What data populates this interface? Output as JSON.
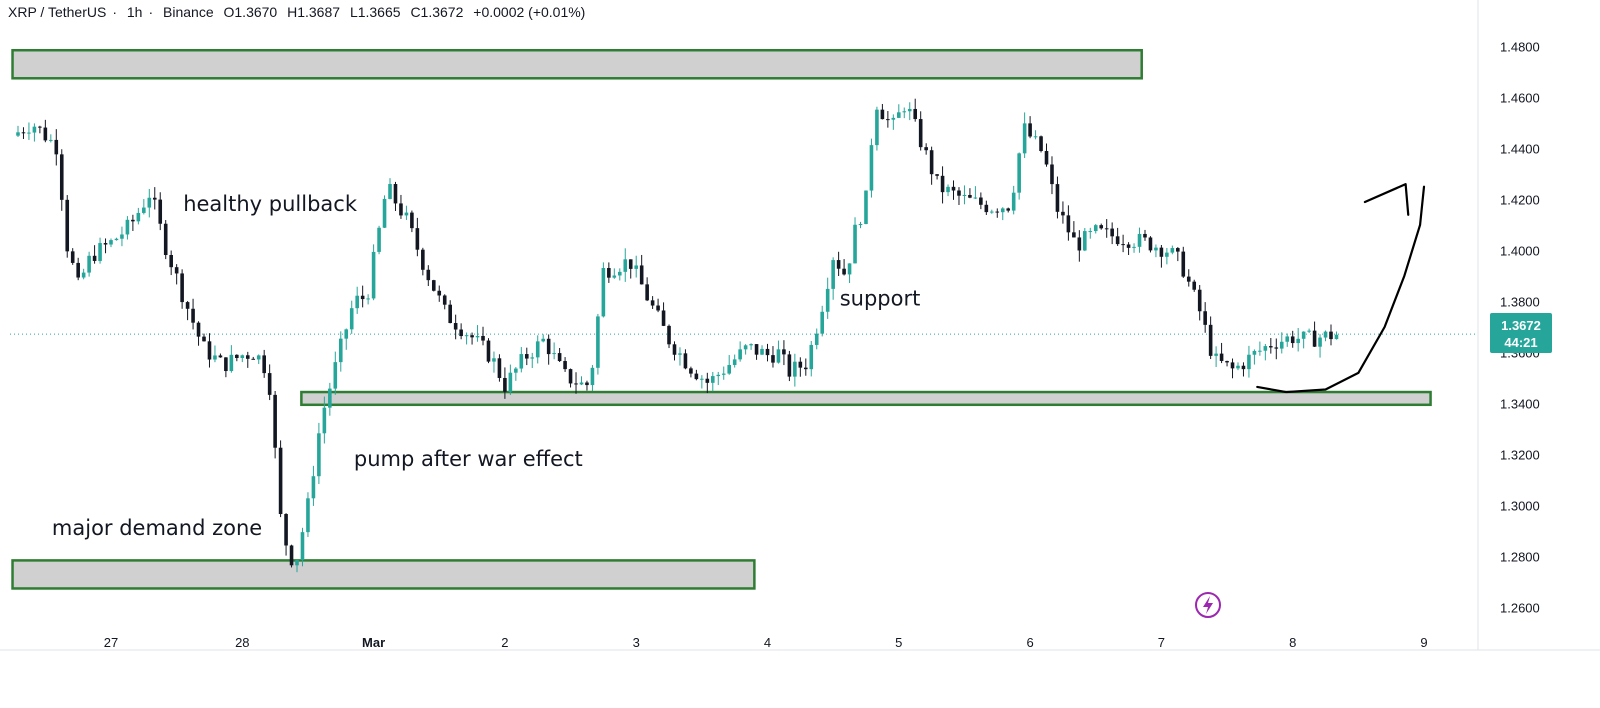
{
  "header": {
    "symbol": "XRP / TetherUS",
    "interval": "1h",
    "exchange": "Binance",
    "open": "O1.3670",
    "high": "H1.3687",
    "low": "L1.3665",
    "close": "C1.3672",
    "change": "+0.0002 (+0.01%)"
  },
  "price_badge": {
    "price": "1.3672",
    "countdown": "44:21"
  },
  "colors": {
    "up": "#26a69a",
    "down": "#131722",
    "zone_fill": "#d0d0d0",
    "zone_border": "#2e7d32",
    "accent": "#9c27b0"
  },
  "chart_data": {
    "type": "candlestick",
    "x_ticks": [
      {
        "label": "27",
        "bold": false
      },
      {
        "label": "28",
        "bold": false
      },
      {
        "label": "Mar",
        "bold": true
      },
      {
        "label": "2",
        "bold": false
      },
      {
        "label": "3",
        "bold": false
      },
      {
        "label": "4",
        "bold": false
      },
      {
        "label": "5",
        "bold": false
      },
      {
        "label": "6",
        "bold": false
      },
      {
        "label": "7",
        "bold": false
      },
      {
        "label": "8",
        "bold": false
      },
      {
        "label": "9",
        "bold": false
      }
    ],
    "y_ticks": [
      "1.4800",
      "1.4600",
      "1.4400",
      "1.4200",
      "1.4000",
      "1.3800",
      "1.3600",
      "1.3400",
      "1.3200",
      "1.3000",
      "1.2800",
      "1.2600"
    ],
    "ylim": [
      1.252,
      1.488
    ],
    "xlim_days": [
      -0.75,
      10.2
    ],
    "last_price": 1.3672,
    "anchors": [
      [
        -0.75,
        1.445
      ],
      [
        -0.6,
        1.45
      ],
      [
        -0.4,
        1.44
      ],
      [
        -0.35,
        1.405
      ],
      [
        -0.25,
        1.386
      ],
      [
        -0.15,
        1.398
      ],
      [
        0.0,
        1.403
      ],
      [
        0.15,
        1.41
      ],
      [
        0.3,
        1.423
      ],
      [
        0.4,
        1.404
      ],
      [
        0.55,
        1.382
      ],
      [
        0.7,
        1.362
      ],
      [
        0.85,
        1.355
      ],
      [
        1.0,
        1.359
      ],
      [
        1.1,
        1.36
      ],
      [
        1.2,
        1.352
      ],
      [
        1.3,
        1.29
      ],
      [
        1.4,
        1.276
      ],
      [
        1.5,
        1.3
      ],
      [
        1.6,
        1.334
      ],
      [
        1.75,
        1.362
      ],
      [
        1.85,
        1.38
      ],
      [
        1.95,
        1.382
      ],
      [
        2.05,
        1.41
      ],
      [
        2.1,
        1.425
      ],
      [
        2.25,
        1.412
      ],
      [
        2.4,
        1.392
      ],
      [
        2.55,
        1.375
      ],
      [
        2.75,
        1.366
      ],
      [
        2.9,
        1.358
      ],
      [
        3.0,
        1.347
      ],
      [
        3.15,
        1.358
      ],
      [
        3.3,
        1.365
      ],
      [
        3.45,
        1.351
      ],
      [
        3.6,
        1.347
      ],
      [
        3.65,
        1.348
      ],
      [
        3.75,
        1.392
      ],
      [
        3.95,
        1.396
      ],
      [
        4.1,
        1.38
      ],
      [
        4.25,
        1.365
      ],
      [
        4.4,
        1.355
      ],
      [
        4.55,
        1.348
      ],
      [
        4.7,
        1.355
      ],
      [
        4.85,
        1.362
      ],
      [
        5.0,
        1.359
      ],
      [
        5.1,
        1.36
      ],
      [
        5.15,
        1.352
      ],
      [
        5.3,
        1.356
      ],
      [
        5.4,
        1.375
      ],
      [
        5.5,
        1.398
      ],
      [
        5.6,
        1.39
      ],
      [
        5.65,
        1.405
      ],
      [
        5.75,
        1.42
      ],
      [
        5.82,
        1.459
      ],
      [
        5.95,
        1.448
      ],
      [
        6.05,
        1.458
      ],
      [
        6.15,
        1.445
      ],
      [
        6.3,
        1.425
      ],
      [
        6.5,
        1.42
      ],
      [
        6.7,
        1.417
      ],
      [
        6.85,
        1.418
      ],
      [
        6.95,
        1.448
      ],
      [
        7.1,
        1.438
      ],
      [
        7.2,
        1.417
      ],
      [
        7.35,
        1.402
      ],
      [
        7.5,
        1.407
      ],
      [
        7.7,
        1.405
      ],
      [
        7.9,
        1.403
      ],
      [
        8.05,
        1.4
      ],
      [
        8.15,
        1.395
      ],
      [
        8.3,
        1.375
      ],
      [
        8.4,
        1.357
      ],
      [
        8.55,
        1.353
      ],
      [
        8.7,
        1.359
      ],
      [
        8.85,
        1.364
      ],
      [
        9.0,
        1.366
      ],
      [
        9.1,
        1.365
      ],
      [
        9.2,
        1.366
      ],
      [
        9.35,
        1.3672
      ]
    ],
    "zones": [
      {
        "name": "upper-resistance-zone",
        "x0": -0.75,
        "x1": 7.85,
        "y0": 1.4675,
        "y1": 1.4785
      },
      {
        "name": "support-zone",
        "x0": 1.45,
        "x1": 10.05,
        "y0": 1.3395,
        "y1": 1.3445
      },
      {
        "name": "demand-zone",
        "x0": -0.75,
        "x1": 4.9,
        "y0": 1.2675,
        "y1": 1.2785
      }
    ],
    "annotations": [
      {
        "name": "healthy-pullback-label",
        "text": "healthy pullback",
        "x": 0.55,
        "y": 1.4155
      },
      {
        "name": "support-label",
        "text": "support",
        "x": 5.55,
        "y": 1.3785
      },
      {
        "name": "pump-after-war-effect-label",
        "text": "pump after war effect",
        "x": 1.85,
        "y": 1.3155
      },
      {
        "name": "major-demand-zone-label",
        "text": "major demand zone",
        "x": -0.45,
        "y": 1.2885
      }
    ],
    "projection_curve": [
      [
        8.73,
        1.3465
      ],
      [
        8.95,
        1.3445
      ],
      [
        9.25,
        1.3455
      ],
      [
        9.5,
        1.352
      ],
      [
        9.7,
        1.37
      ],
      [
        9.85,
        1.39
      ],
      [
        9.97,
        1.41
      ],
      [
        10.0,
        1.425
      ]
    ],
    "projection_arrowhead": [
      [
        9.55,
        1.419
      ],
      [
        9.86,
        1.426
      ],
      [
        9.88,
        1.414
      ]
    ]
  }
}
